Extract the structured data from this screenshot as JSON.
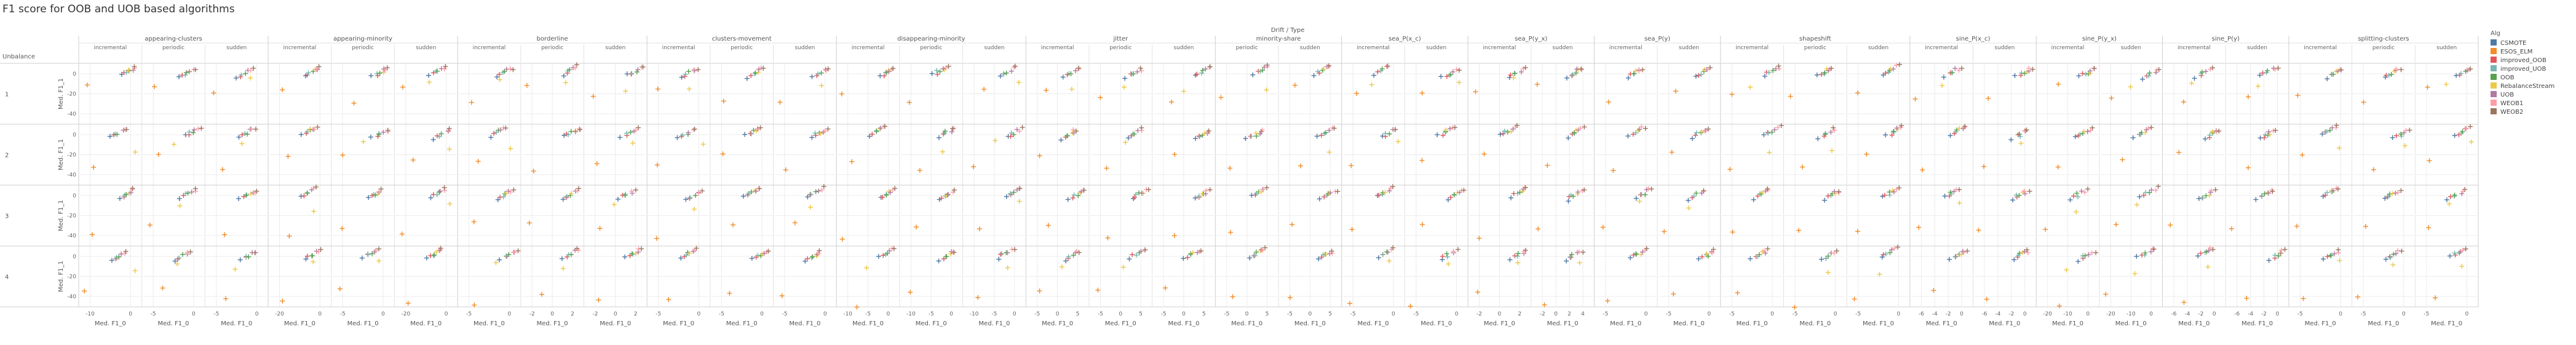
{
  "chart_data": {
    "type": "scatter",
    "title": "F1 score for OOB and UOB based algorithms",
    "column_header": "Drift / Type",
    "row_header": "Unbalance",
    "xlabel": "Med. F1_0",
    "ylabel": "Med. F1_1",
    "legend_title": "Alg",
    "legend_position": "right",
    "drift_groups": [
      {
        "name": "appearing-clusters",
        "types": [
          "incremental",
          "periodic",
          "sudden"
        ]
      },
      {
        "name": "appearing-minority",
        "types": [
          "incremental",
          "periodic",
          "sudden"
        ]
      },
      {
        "name": "borderline",
        "types": [
          "incremental",
          "periodic",
          "sudden"
        ]
      },
      {
        "name": "clusters-movement",
        "types": [
          "incremental",
          "periodic",
          "sudden"
        ]
      },
      {
        "name": "disappearing-minority",
        "types": [
          "incremental",
          "periodic",
          "sudden"
        ]
      },
      {
        "name": "jitter",
        "types": [
          "incremental",
          "periodic",
          "sudden"
        ]
      },
      {
        "name": "minority-share",
        "types": [
          "periodic",
          "sudden"
        ]
      },
      {
        "name": "sea_P(x_c)",
        "types": [
          "incremental",
          "sudden"
        ]
      },
      {
        "name": "sea_P(y_x)",
        "types": [
          "incremental",
          "sudden"
        ]
      },
      {
        "name": "sea_P(y)",
        "types": [
          "incremental",
          "sudden"
        ]
      },
      {
        "name": "shapeshift",
        "types": [
          "incremental",
          "periodic",
          "sudden"
        ]
      },
      {
        "name": "sine_P(x_c)",
        "types": [
          "incremental",
          "sudden"
        ]
      },
      {
        "name": "sine_P(y_x)",
        "types": [
          "incremental",
          "sudden"
        ]
      },
      {
        "name": "sine_P(y)",
        "types": [
          "incremental",
          "sudden"
        ]
      },
      {
        "name": "splitting-clusters",
        "types": [
          "incremental",
          "periodic",
          "sudden"
        ]
      }
    ],
    "rows": [
      "1",
      "2",
      "3",
      "4"
    ],
    "y_ticks": [
      "0",
      "-20",
      "-40"
    ],
    "ylim": [
      -48,
      8
    ],
    "x_ticks": [
      [
        "-10",
        "0"
      ],
      [
        "-5",
        "0"
      ],
      [
        "-5",
        "0"
      ],
      [
        "-20",
        "0"
      ],
      [
        "-5",
        "0"
      ],
      [
        "-20",
        "0"
      ],
      [
        "-5",
        "0"
      ],
      [
        "-2",
        "0",
        "2"
      ],
      [
        "-2",
        "0",
        "2"
      ],
      [
        "-5",
        "0"
      ],
      [
        "-5",
        "0"
      ],
      [
        "-5",
        "0"
      ],
      [
        "-10",
        "-5",
        "0"
      ],
      [
        "-10",
        "-5",
        "0"
      ],
      [
        "-10",
        "-5",
        "0"
      ],
      [
        "-5",
        "0",
        "5"
      ],
      [
        "-5",
        "0",
        "5"
      ],
      [
        "-5",
        "0",
        "5"
      ],
      [
        "-5",
        "0",
        "5"
      ],
      [
        "-5",
        "0",
        "5"
      ],
      [
        "-5",
        "0"
      ],
      [
        "-5",
        "0"
      ],
      [
        "-2",
        "0",
        "2"
      ],
      [
        "-2",
        "0",
        "2",
        "4"
      ],
      [
        "-5",
        "0"
      ],
      [
        "-5",
        "0"
      ],
      [
        "-5",
        "0"
      ],
      [
        "-5",
        "0"
      ],
      [
        "-5",
        "0"
      ],
      [
        "-6",
        "-4",
        "-2",
        "0"
      ],
      [
        "-6",
        "-4",
        "-2",
        "0"
      ],
      [
        "-20",
        "-10",
        "0"
      ],
      [
        "-20",
        "-10",
        "0"
      ],
      [
        "-6",
        "-4",
        "-2",
        "0"
      ],
      [
        "-6",
        "-4",
        "-2",
        "0"
      ],
      [
        "-5",
        "0"
      ],
      [
        "-5",
        "0"
      ],
      [
        "-5",
        "0"
      ]
    ],
    "series": [
      {
        "name": "CSMOTE",
        "color": "#4e79a7"
      },
      {
        "name": "ESOS_ELM",
        "color": "#f28e2b"
      },
      {
        "name": "improved_OOB",
        "color": "#e15759"
      },
      {
        "name": "improved_UOB",
        "color": "#76b7b2"
      },
      {
        "name": "OOB",
        "color": "#59a14f"
      },
      {
        "name": "RebalanceStream",
        "color": "#edc948"
      },
      {
        "name": "UOB",
        "color": "#b07aa1"
      },
      {
        "name": "WEOB1",
        "color": "#ff9da7"
      },
      {
        "name": "WEOB2",
        "color": "#9c755f"
      }
    ]
  }
}
